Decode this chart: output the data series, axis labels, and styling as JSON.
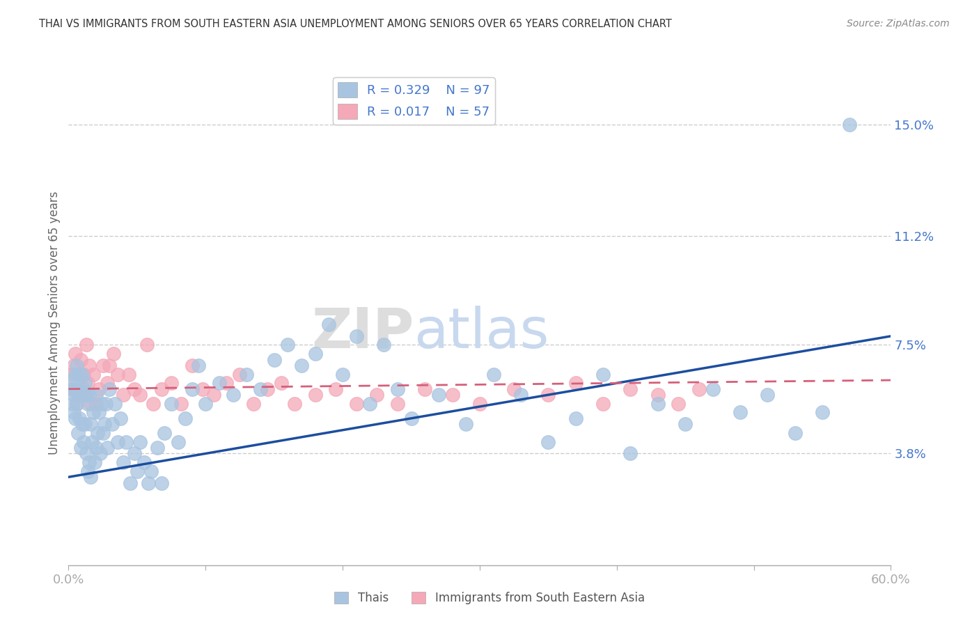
{
  "title": "THAI VS IMMIGRANTS FROM SOUTH EASTERN ASIA UNEMPLOYMENT AMONG SENIORS OVER 65 YEARS CORRELATION CHART",
  "source": "Source: ZipAtlas.com",
  "ylabel": "Unemployment Among Seniors over 65 years",
  "xmin": 0.0,
  "xmax": 0.6,
  "ymin": 0.0,
  "ymax": 0.165,
  "yticks": [
    0.038,
    0.075,
    0.112,
    0.15
  ],
  "ytick_labels": [
    "3.8%",
    "7.5%",
    "11.2%",
    "15.0%"
  ],
  "xticks": [
    0.0,
    0.1,
    0.2,
    0.3,
    0.4,
    0.5,
    0.6
  ],
  "xtick_labels": [
    "0.0%",
    "",
    "",
    "",
    "",
    "",
    "60.0%"
  ],
  "legend_R1": "0.329",
  "legend_N1": "97",
  "legend_R2": "0.017",
  "legend_N2": "57",
  "legend_label1": "Thais",
  "legend_label2": "Immigrants from South Eastern Asia",
  "color_blue": "#A8C4E0",
  "color_pink": "#F4A8B8",
  "color_line_blue": "#1C4E9F",
  "color_line_pink": "#D4607A",
  "color_text_blue": "#4477CC",
  "color_axis": "#AAAAAA",
  "watermark_zip": "ZIP",
  "watermark_atlas": "atlas",
  "background_color": "#FFFFFF",
  "grid_color": "#CCCCCC",
  "thai_x": [
    0.002,
    0.003,
    0.003,
    0.004,
    0.004,
    0.005,
    0.005,
    0.005,
    0.006,
    0.006,
    0.007,
    0.007,
    0.008,
    0.008,
    0.009,
    0.009,
    0.01,
    0.01,
    0.011,
    0.011,
    0.012,
    0.012,
    0.013,
    0.013,
    0.014,
    0.014,
    0.015,
    0.015,
    0.016,
    0.016,
    0.017,
    0.018,
    0.019,
    0.02,
    0.02,
    0.021,
    0.022,
    0.023,
    0.024,
    0.025,
    0.026,
    0.027,
    0.028,
    0.03,
    0.032,
    0.034,
    0.036,
    0.038,
    0.04,
    0.042,
    0.045,
    0.048,
    0.05,
    0.052,
    0.055,
    0.058,
    0.06,
    0.065,
    0.068,
    0.07,
    0.075,
    0.08,
    0.085,
    0.09,
    0.095,
    0.1,
    0.11,
    0.12,
    0.13,
    0.14,
    0.15,
    0.16,
    0.17,
    0.18,
    0.19,
    0.2,
    0.21,
    0.22,
    0.23,
    0.24,
    0.25,
    0.27,
    0.29,
    0.31,
    0.33,
    0.35,
    0.37,
    0.39,
    0.41,
    0.43,
    0.45,
    0.47,
    0.49,
    0.51,
    0.53,
    0.55,
    0.57
  ],
  "thai_y": [
    0.06,
    0.055,
    0.063,
    0.058,
    0.052,
    0.065,
    0.06,
    0.05,
    0.068,
    0.055,
    0.06,
    0.045,
    0.065,
    0.05,
    0.058,
    0.04,
    0.065,
    0.048,
    0.06,
    0.042,
    0.062,
    0.048,
    0.058,
    0.038,
    0.055,
    0.032,
    0.058,
    0.035,
    0.03,
    0.048,
    0.042,
    0.052,
    0.035,
    0.058,
    0.04,
    0.045,
    0.052,
    0.038,
    0.055,
    0.045,
    0.048,
    0.055,
    0.04,
    0.06,
    0.048,
    0.055,
    0.042,
    0.05,
    0.035,
    0.042,
    0.028,
    0.038,
    0.032,
    0.042,
    0.035,
    0.028,
    0.032,
    0.04,
    0.028,
    0.045,
    0.055,
    0.042,
    0.05,
    0.06,
    0.068,
    0.055,
    0.062,
    0.058,
    0.065,
    0.06,
    0.07,
    0.075,
    0.068,
    0.072,
    0.082,
    0.065,
    0.078,
    0.055,
    0.075,
    0.06,
    0.05,
    0.058,
    0.048,
    0.065,
    0.058,
    0.042,
    0.05,
    0.065,
    0.038,
    0.055,
    0.048,
    0.06,
    0.052,
    0.058,
    0.045,
    0.052,
    0.15
  ],
  "sea_x": [
    0.002,
    0.003,
    0.004,
    0.005,
    0.006,
    0.007,
    0.008,
    0.009,
    0.01,
    0.011,
    0.012,
    0.013,
    0.014,
    0.015,
    0.016,
    0.018,
    0.02,
    0.022,
    0.025,
    0.028,
    0.03,
    0.033,
    0.036,
    0.04,
    0.044,
    0.048,
    0.052,
    0.057,
    0.062,
    0.068,
    0.075,
    0.082,
    0.09,
    0.098,
    0.106,
    0.115,
    0.125,
    0.135,
    0.145,
    0.155,
    0.165,
    0.18,
    0.195,
    0.21,
    0.225,
    0.24,
    0.26,
    0.28,
    0.3,
    0.325,
    0.35,
    0.37,
    0.39,
    0.41,
    0.43,
    0.445,
    0.46
  ],
  "sea_y": [
    0.065,
    0.06,
    0.068,
    0.072,
    0.055,
    0.065,
    0.058,
    0.07,
    0.06,
    0.065,
    0.058,
    0.075,
    0.062,
    0.068,
    0.055,
    0.065,
    0.055,
    0.06,
    0.068,
    0.062,
    0.068,
    0.072,
    0.065,
    0.058,
    0.065,
    0.06,
    0.058,
    0.075,
    0.055,
    0.06,
    0.062,
    0.055,
    0.068,
    0.06,
    0.058,
    0.062,
    0.065,
    0.055,
    0.06,
    0.062,
    0.055,
    0.058,
    0.06,
    0.055,
    0.058,
    0.055,
    0.06,
    0.058,
    0.055,
    0.06,
    0.058,
    0.062,
    0.055,
    0.06,
    0.058,
    0.055,
    0.06
  ],
  "blue_line_x0": 0.0,
  "blue_line_y0": 0.03,
  "blue_line_x1": 0.6,
  "blue_line_y1": 0.078,
  "pink_line_x0": 0.0,
  "pink_line_y0": 0.06,
  "pink_line_x1": 0.6,
  "pink_line_y1": 0.063
}
